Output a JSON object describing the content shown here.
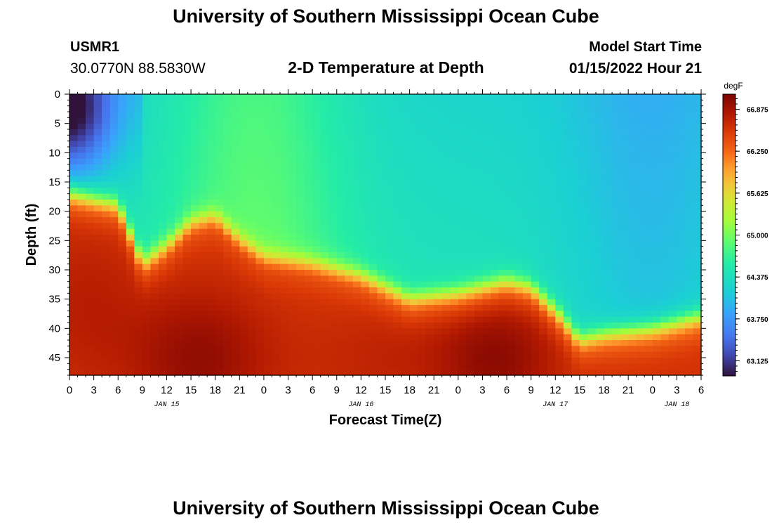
{
  "header": {
    "title": "University of Southern Mississippi Ocean Cube",
    "station_id": "USMR1",
    "station_coords": "30.0770N  88.5830W",
    "plot_title": "2-D Temperature at Depth",
    "model_start_label": "Model Start Time",
    "model_start_value": "01/15/2022 Hour 21"
  },
  "footer": {
    "title": "University of Southern Mississippi Ocean Cube"
  },
  "chart_data": {
    "type": "heatmap",
    "title": "2-D Temperature at Depth",
    "xlabel": "Forecast Time(Z)",
    "ylabel": "Depth (ft)",
    "x_range_hours": [
      0,
      78
    ],
    "y_range_ft": [
      0,
      48
    ],
    "x_ticks": [
      "0",
      "3",
      "6",
      "9",
      "12",
      "15",
      "18",
      "21",
      "0",
      "3",
      "6",
      "9",
      "12",
      "15",
      "18",
      "21",
      "0",
      "3",
      "6",
      "9",
      "12",
      "15",
      "18",
      "21",
      "0",
      "3",
      "6"
    ],
    "y_ticks": [
      "0",
      "5",
      "10",
      "15",
      "20",
      "25",
      "30",
      "35",
      "40",
      "45"
    ],
    "y_tick_values": [
      0,
      5,
      10,
      15,
      20,
      25,
      30,
      35,
      40,
      45
    ],
    "date_labels": [
      {
        "text": "JAN 15",
        "hour": 12
      },
      {
        "text": "JAN 16",
        "hour": 36
      },
      {
        "text": "JAN 17",
        "hour": 60
      },
      {
        "text": "JAN 18",
        "hour": 75
      }
    ],
    "colorbar": {
      "unit": "degF",
      "min": 62.9,
      "max": 67.1,
      "ticks": [
        "66.875",
        "66.250",
        "65.625",
        "65.000",
        "64.375",
        "63.750",
        "63.125"
      ],
      "tick_values": [
        66.875,
        66.25,
        65.625,
        65.0,
        64.375,
        63.75,
        63.125
      ]
    },
    "thermocline_depth_ft": [
      {
        "hour": 0,
        "depth": 18
      },
      {
        "hour": 6,
        "depth": 20
      },
      {
        "hour": 9,
        "depth": 30
      },
      {
        "hour": 12,
        "depth": 27
      },
      {
        "hour": 15,
        "depth": 23
      },
      {
        "hour": 18,
        "depth": 22
      },
      {
        "hour": 21,
        "depth": 26
      },
      {
        "hour": 24,
        "depth": 29
      },
      {
        "hour": 30,
        "depth": 30
      },
      {
        "hour": 36,
        "depth": 32
      },
      {
        "hour": 39,
        "depth": 34
      },
      {
        "hour": 42,
        "depth": 36
      },
      {
        "hour": 48,
        "depth": 35
      },
      {
        "hour": 54,
        "depth": 33
      },
      {
        "hour": 57,
        "depth": 34
      },
      {
        "hour": 60,
        "depth": 38
      },
      {
        "hour": 63,
        "depth": 43
      },
      {
        "hour": 66,
        "depth": 42
      },
      {
        "hour": 72,
        "depth": 41
      },
      {
        "hour": 78,
        "depth": 39
      }
    ]
  }
}
